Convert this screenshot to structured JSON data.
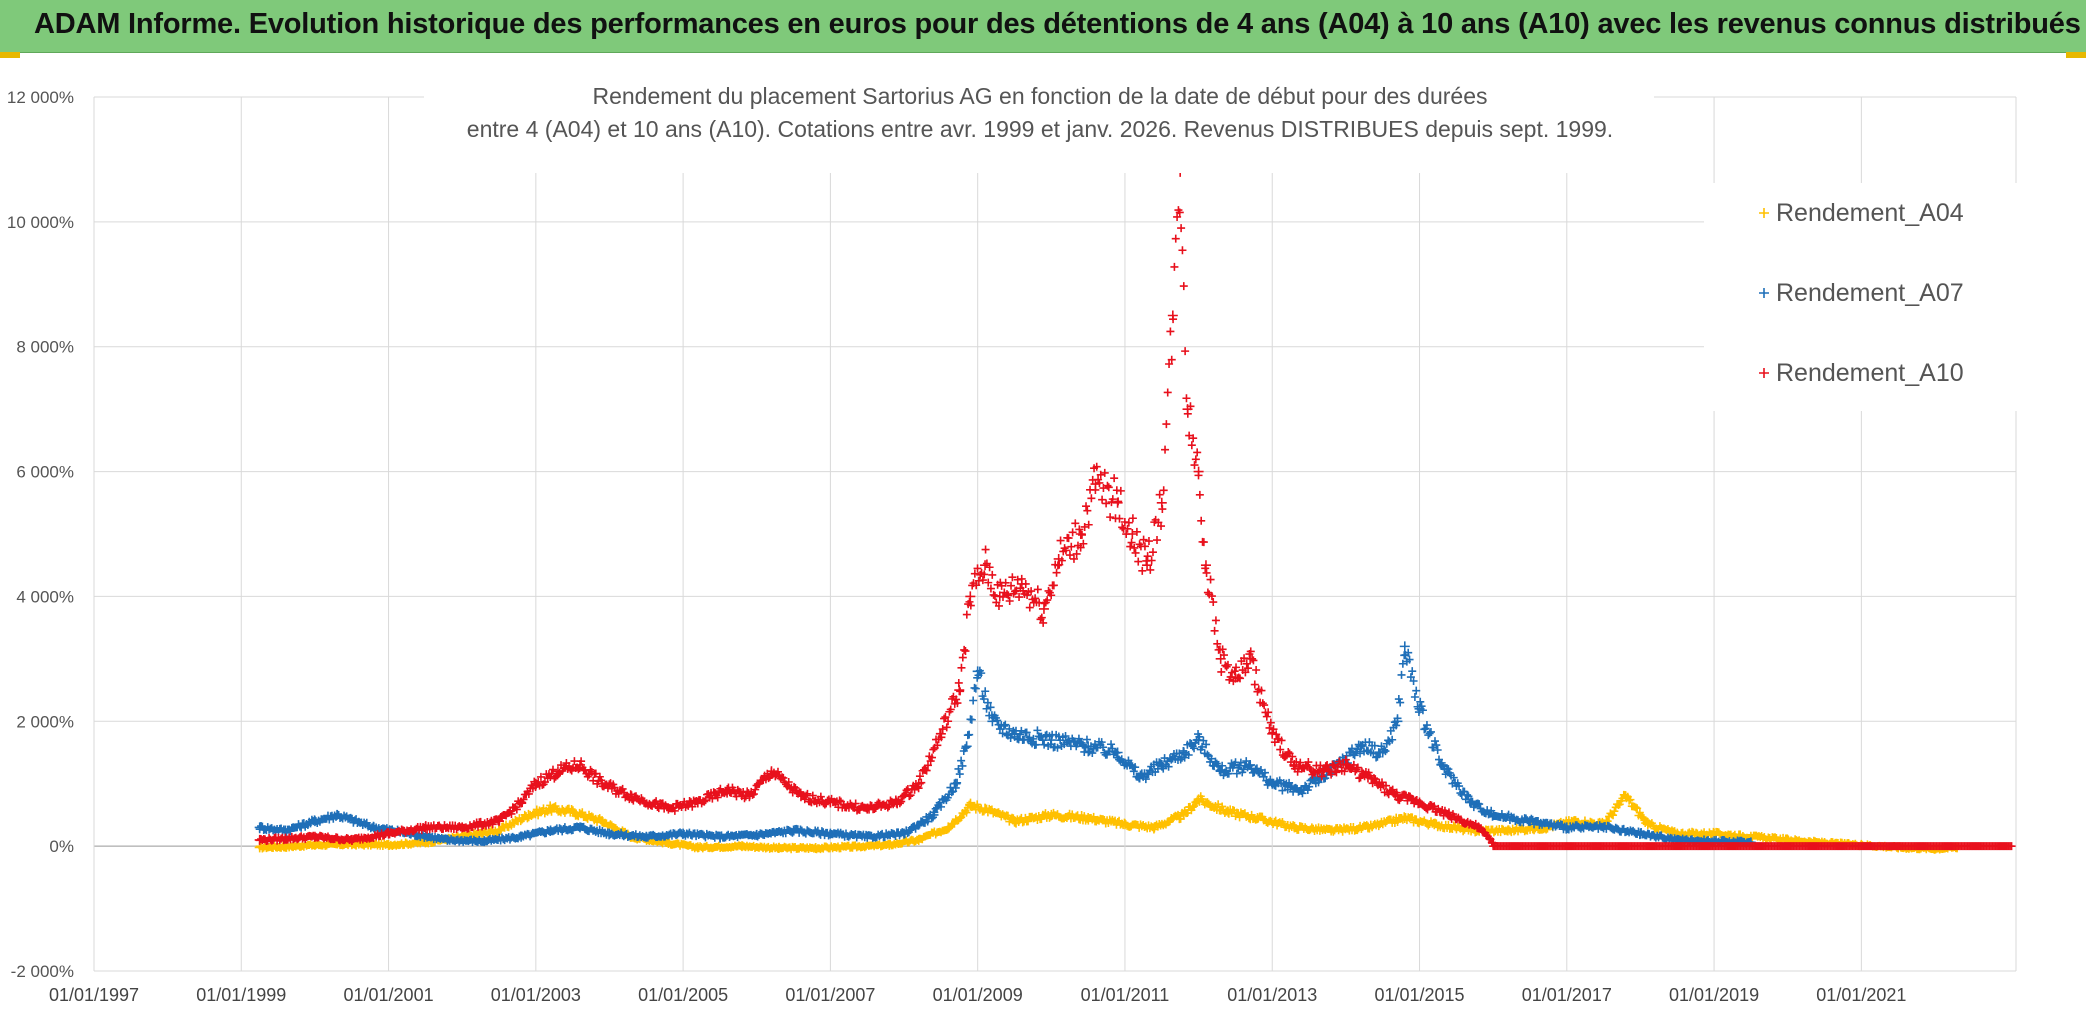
{
  "header": {
    "banner": "ADAM Informe. Evolution historique des performances en euros pour des détentions de 4 ans (A04) à 10 ans (A10) avec les revenus connus distribués"
  },
  "colors": {
    "banner_bg": "#7fc97a",
    "grid": "#d9d9d9",
    "A04": "#ffc000",
    "A07": "#1f6fb8",
    "A10": "#e8101c"
  },
  "chart_data": {
    "type": "scatter",
    "title_line1": "Rendement du placement Sartorius AG en fonction de la date de début pour des durées",
    "title_line2": "entre 4 (A04) et 10 ans (A10). Cotations entre avr. 1999 et janv. 2026. Revenus DISTRIBUES depuis sept. 1999.",
    "marker": "+",
    "x_range": [
      1997.0,
      2023.1
    ],
    "y_range": [
      -2000,
      12000
    ],
    "y_ticks": [
      -2000,
      0,
      2000,
      4000,
      6000,
      8000,
      10000,
      12000
    ],
    "y_tick_labels": [
      "-2 000%",
      "0%",
      "2 000%",
      "4 000%",
      "6 000%",
      "8 000%",
      "10 000%",
      "12 000%"
    ],
    "x_ticks": [
      1997,
      1999,
      2001,
      2003,
      2005,
      2007,
      2009,
      2011,
      2013,
      2015,
      2017,
      2019,
      2021
    ],
    "x_tick_labels": [
      "01/01/1997",
      "01/01/1999",
      "01/01/2001",
      "01/01/2003",
      "01/01/2005",
      "01/01/2007",
      "01/01/2009",
      "01/01/2011",
      "01/01/2013",
      "01/01/2015",
      "01/01/2017",
      "01/01/2019",
      "01/01/2021"
    ],
    "legend_position": "top-right",
    "series": [
      {
        "name": "Rendement_A04",
        "color": "#ffc000",
        "x": [
          1999.25,
          1999.6,
          2000.0,
          2000.5,
          2001.0,
          2001.5,
          2002.0,
          2002.5,
          2002.9,
          2003.2,
          2003.5,
          2003.9,
          2004.3,
          2004.8,
          2005.2,
          2005.8,
          2006.3,
          2006.8,
          2007.3,
          2007.8,
          2008.2,
          2008.6,
          2008.9,
          2009.1,
          2009.5,
          2010.0,
          2010.5,
          2011.0,
          2011.4,
          2011.8,
          2012.0,
          2012.4,
          2012.8,
          2013.3,
          2013.8,
          2014.3,
          2014.8,
          2015.2,
          2015.7,
          2016.2,
          2016.7,
          2017.1,
          2017.5,
          2017.8,
          2018.1,
          2018.5,
          2019.0,
          2019.5,
          2020.0,
          2020.5,
          2021.0,
          2021.5,
          2022.0,
          2022.3
        ],
        "y": [
          -20,
          -10,
          20,
          30,
          20,
          60,
          150,
          250,
          500,
          600,
          550,
          400,
          150,
          50,
          -20,
          0,
          -30,
          -30,
          -10,
          20,
          100,
          300,
          650,
          600,
          400,
          500,
          450,
          350,
          300,
          500,
          750,
          550,
          450,
          300,
          250,
          300,
          450,
          350,
          250,
          250,
          300,
          400,
          350,
          800,
          350,
          200,
          200,
          150,
          100,
          50,
          20,
          -20,
          -40,
          -20
        ]
      },
      {
        "name": "Rendement_A07",
        "color": "#1f6fb8",
        "x": [
          1999.25,
          1999.6,
          2000.0,
          2000.3,
          2000.8,
          2001.3,
          2001.8,
          2002.3,
          2002.8,
          2003.2,
          2003.6,
          2004.0,
          2004.5,
          2005.0,
          2005.5,
          2006.0,
          2006.5,
          2007.0,
          2007.5,
          2008.0,
          2008.4,
          2008.7,
          2008.85,
          2009.0,
          2009.2,
          2009.5,
          2010.0,
          2010.5,
          2010.9,
          2011.2,
          2011.5,
          2011.8,
          2012.0,
          2012.3,
          2012.7,
          2013.0,
          2013.4,
          2013.8,
          2014.2,
          2014.5,
          2014.7,
          2014.8,
          2015.0,
          2015.3,
          2015.7,
          2016.0,
          2016.5,
          2017.0,
          2017.5,
          2018.0,
          2018.5,
          2019.0,
          2019.5
        ],
        "y": [
          300,
          250,
          400,
          500,
          300,
          200,
          100,
          80,
          150,
          250,
          300,
          200,
          150,
          200,
          150,
          180,
          250,
          200,
          150,
          200,
          500,
          1000,
          1600,
          2800,
          2000,
          1800,
          1700,
          1600,
          1500,
          1100,
          1300,
          1500,
          1700,
          1200,
          1300,
          1000,
          900,
          1200,
          1600,
          1500,
          2000,
          3200,
          2200,
          1300,
          700,
          500,
          400,
          300,
          300,
          200,
          100,
          80,
          60
        ]
      },
      {
        "name": "Rendement_A10",
        "color": "#e8101c",
        "x": [
          1999.25,
          1999.6,
          2000.0,
          2000.5,
          2001.0,
          2001.5,
          2002.0,
          2002.5,
          2002.8,
          2003.0,
          2003.3,
          2003.6,
          2003.9,
          2004.3,
          2004.8,
          2005.2,
          2005.6,
          2005.9,
          2006.2,
          2006.6,
          2007.0,
          2007.5,
          2007.9,
          2008.2,
          2008.5,
          2008.75,
          2008.9,
          2009.1,
          2009.3,
          2009.6,
          2009.9,
          2010.1,
          2010.4,
          2010.6,
          2010.9,
          2011.1,
          2011.3,
          2011.5,
          2011.65,
          2011.75,
          2011.85,
          2012.0,
          2012.1,
          2012.3,
          2012.5,
          2012.7,
          2013.0,
          2013.3,
          2013.7,
          2014.0,
          2014.3,
          2014.7,
          2015.0,
          2015.4,
          2015.8,
          2016.0
        ],
        "y": [
          100,
          120,
          150,
          100,
          200,
          300,
          300,
          400,
          700,
          1000,
          1200,
          1300,
          1000,
          800,
          600,
          700,
          900,
          800,
          1200,
          800,
          700,
          600,
          700,
          1000,
          1800,
          2500,
          4000,
          4500,
          4000,
          4200,
          3800,
          4600,
          5000,
          5800,
          5500,
          5000,
          4500,
          5500,
          8500,
          10800,
          7000,
          6000,
          4500,
          3000,
          2700,
          3000,
          1800,
          1300,
          1200,
          1300,
          1100,
          800,
          700,
          500,
          300,
          50
        ]
      }
    ]
  }
}
